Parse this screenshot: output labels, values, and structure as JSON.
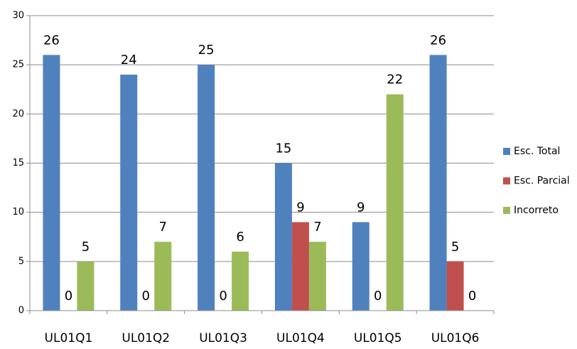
{
  "chart_data": {
    "type": "bar",
    "categories": [
      "UL01Q1",
      "UL01Q2",
      "UL01Q3",
      "UL01Q4",
      "UL01Q5",
      "UL01Q6"
    ],
    "series": [
      {
        "name": "Esc. Total",
        "color": "#4f81bd",
        "values": [
          26,
          24,
          25,
          15,
          9,
          26
        ]
      },
      {
        "name": "Esc. Parcial",
        "color": "#c0504d",
        "values": [
          0,
          0,
          0,
          9,
          0,
          5
        ]
      },
      {
        "name": "Incorreto",
        "color": "#9bbb59",
        "values": [
          5,
          7,
          6,
          7,
          22,
          0
        ]
      }
    ],
    "ylim": [
      0,
      30
    ],
    "yticks": [
      0,
      5,
      10,
      15,
      20,
      25,
      30
    ],
    "grid": true,
    "legend": "right"
  }
}
